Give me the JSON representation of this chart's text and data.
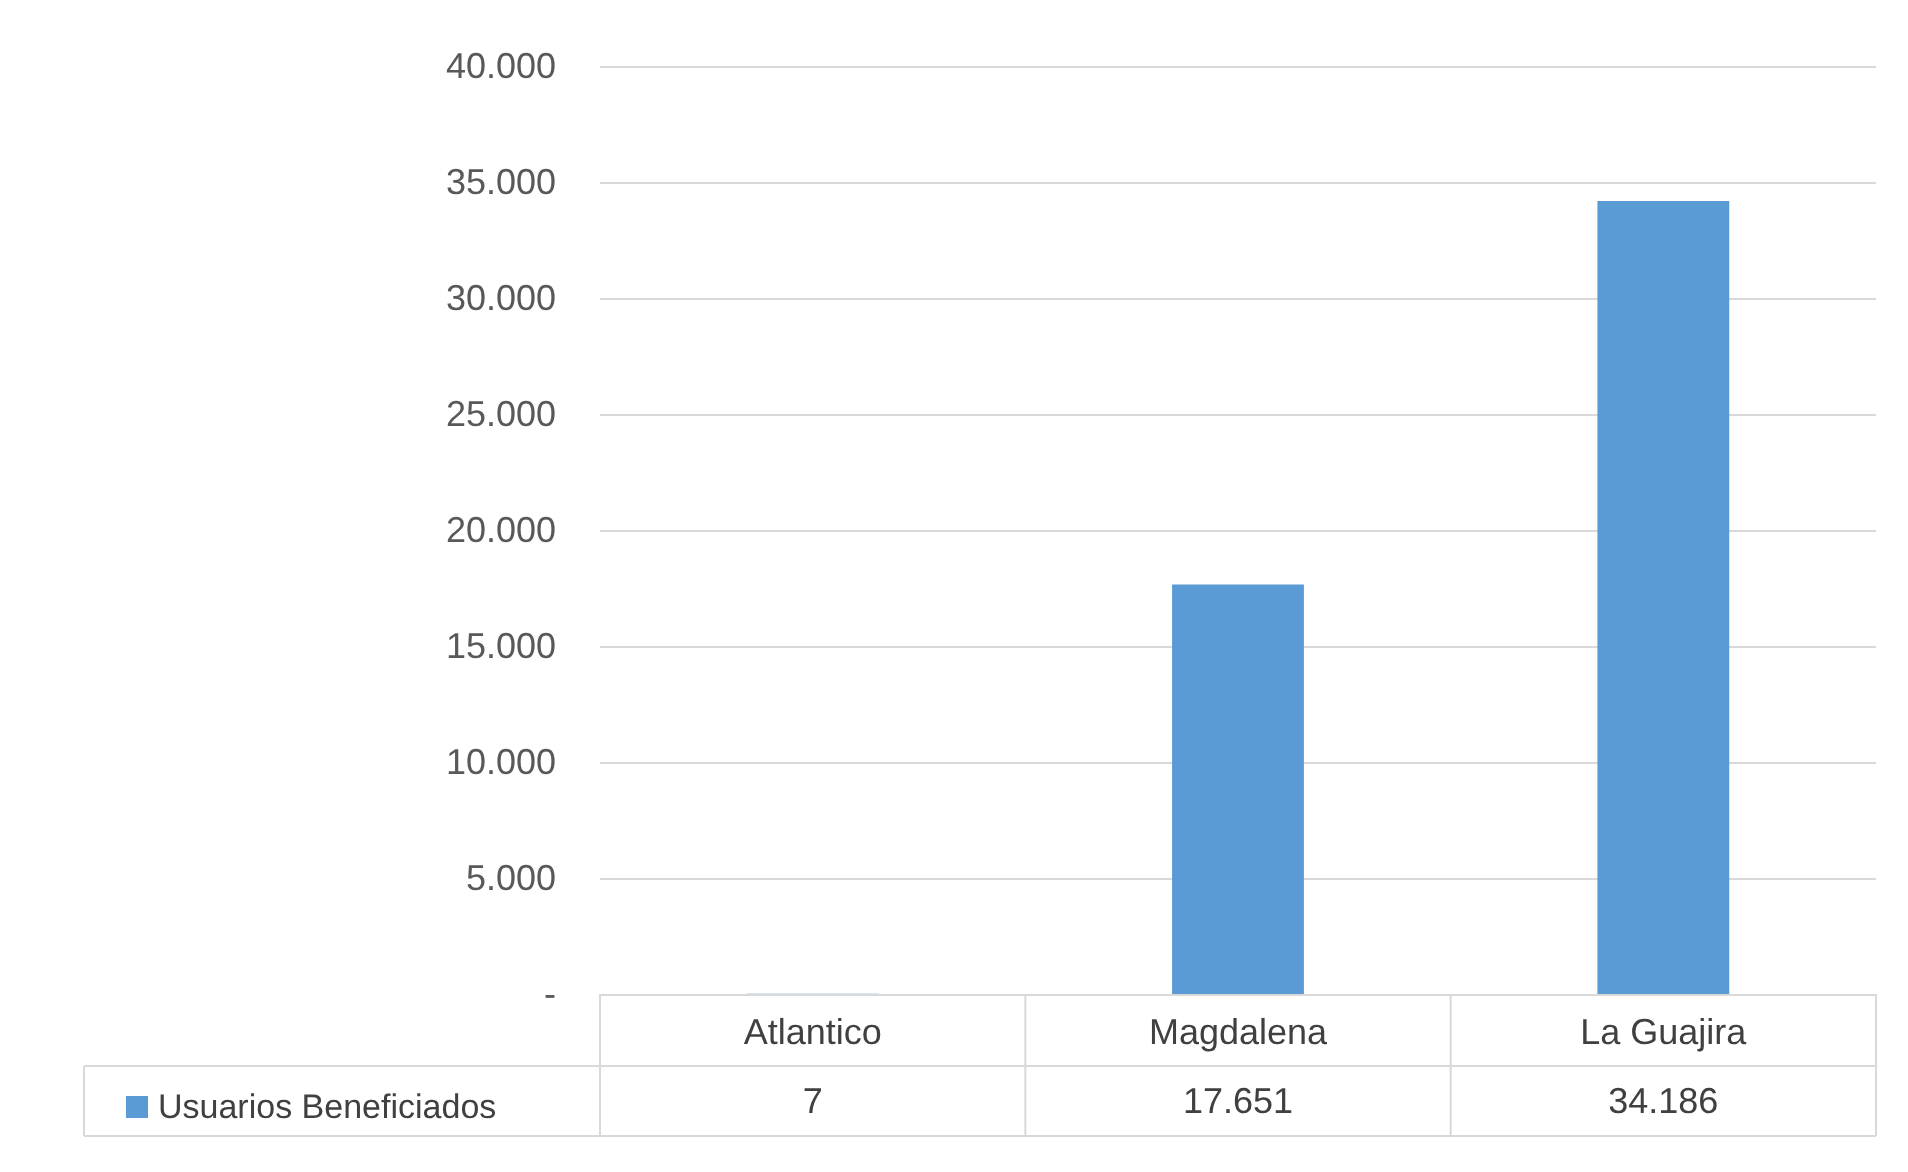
{
  "chart_data": {
    "type": "bar",
    "categories": [
      "Atlantico",
      "Magdalena",
      "La Guajira"
    ],
    "series": [
      {
        "name": "Usuarios Beneficiados",
        "color": "#5b9bd5",
        "values": [
          7,
          17651,
          34186
        ],
        "value_labels": [
          "7",
          "17.651",
          "34.186"
        ]
      }
    ],
    "ylim": [
      0,
      40000
    ],
    "yticks": [
      {
        "value": 0,
        "label": "-"
      },
      {
        "value": 5000,
        "label": "5.000"
      },
      {
        "value": 10000,
        "label": "10.000"
      },
      {
        "value": 15000,
        "label": "15.000"
      },
      {
        "value": 20000,
        "label": "20.000"
      },
      {
        "value": 25000,
        "label": "25.000"
      },
      {
        "value": 30000,
        "label": "30.000"
      },
      {
        "value": 35000,
        "label": "35.000"
      },
      {
        "value": 40000,
        "label": "40.000"
      }
    ],
    "grid": "y",
    "legend": "bottom"
  }
}
